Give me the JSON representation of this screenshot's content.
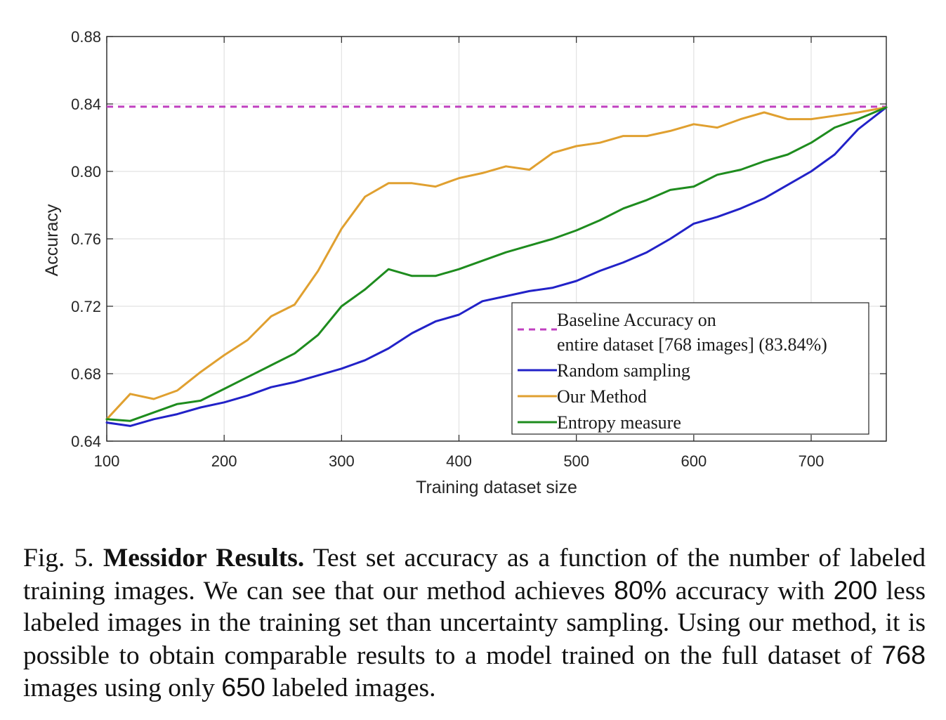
{
  "chart_data": {
    "type": "line",
    "xlabel": "Training dataset size",
    "ylabel": "Accuracy",
    "xlim": [
      100,
      764
    ],
    "ylim": [
      0.64,
      0.88
    ],
    "xticks": [
      100,
      200,
      300,
      400,
      500,
      600,
      700
    ],
    "yticks": [
      0.64,
      0.68,
      0.72,
      0.76,
      0.8,
      0.84,
      0.88
    ],
    "ytick_labels": [
      "0.64",
      "0.68",
      "0.72",
      "0.76",
      "0.80",
      "0.84",
      "0.88"
    ],
    "grid": true,
    "legend_position": "bottom-right",
    "x": [
      100,
      120,
      140,
      160,
      180,
      200,
      220,
      240,
      260,
      280,
      300,
      320,
      340,
      360,
      380,
      400,
      420,
      440,
      460,
      480,
      500,
      520,
      540,
      560,
      580,
      600,
      620,
      640,
      660,
      680,
      700,
      720,
      740,
      764
    ],
    "series": [
      {
        "name": "Random sampling",
        "color": "#2222c8",
        "style": "solid",
        "values": [
          0.651,
          0.649,
          0.653,
          0.656,
          0.66,
          0.663,
          0.667,
          0.672,
          0.675,
          0.679,
          0.683,
          0.688,
          0.695,
          0.704,
          0.711,
          0.715,
          0.723,
          0.726,
          0.729,
          0.731,
          0.735,
          0.741,
          0.746,
          0.752,
          0.76,
          0.769,
          0.773,
          0.778,
          0.784,
          0.792,
          0.8,
          0.81,
          0.825,
          0.838
        ]
      },
      {
        "name": "Our Method",
        "color": "#e0a030",
        "style": "solid",
        "values": [
          0.653,
          0.668,
          0.665,
          0.67,
          0.681,
          0.691,
          0.7,
          0.714,
          0.721,
          0.741,
          0.766,
          0.785,
          0.793,
          0.793,
          0.791,
          0.796,
          0.799,
          0.803,
          0.801,
          0.811,
          0.815,
          0.817,
          0.821,
          0.821,
          0.824,
          0.828,
          0.826,
          0.831,
          0.835,
          0.831,
          0.831,
          0.833,
          0.835,
          0.838
        ]
      },
      {
        "name": "Entropy measure",
        "color": "#1e8c1e",
        "style": "solid",
        "values": [
          0.653,
          0.652,
          0.657,
          0.662,
          0.664,
          0.671,
          0.678,
          0.685,
          0.692,
          0.703,
          0.72,
          0.73,
          0.742,
          0.738,
          0.738,
          0.742,
          0.747,
          0.752,
          0.756,
          0.76,
          0.765,
          0.771,
          0.778,
          0.783,
          0.789,
          0.791,
          0.798,
          0.801,
          0.806,
          0.81,
          0.817,
          0.826,
          0.831,
          0.838
        ]
      }
    ],
    "baseline": {
      "value": 0.8384,
      "color": "#c040c0",
      "style": "dashed",
      "legend_line1": "Baseline Accuracy on",
      "legend_line2": "entire dataset [768 images] (83.84%)"
    }
  },
  "caption": {
    "fig_label": "Fig. 5.",
    "title": "Messidor Results.",
    "t1": "Test set accuracy as a function of the number of labeled training images. We can see that our method achieves",
    "n1": "80%",
    "t2": "accuracy with",
    "n2": "200",
    "t3": "less labeled images in the training set than uncertainty sampling. Using our method, it is possible to obtain comparable results to a model trained on the full dataset of",
    "n3": "768",
    "t4": "images using only",
    "n4": "650",
    "t5": "labeled images."
  }
}
